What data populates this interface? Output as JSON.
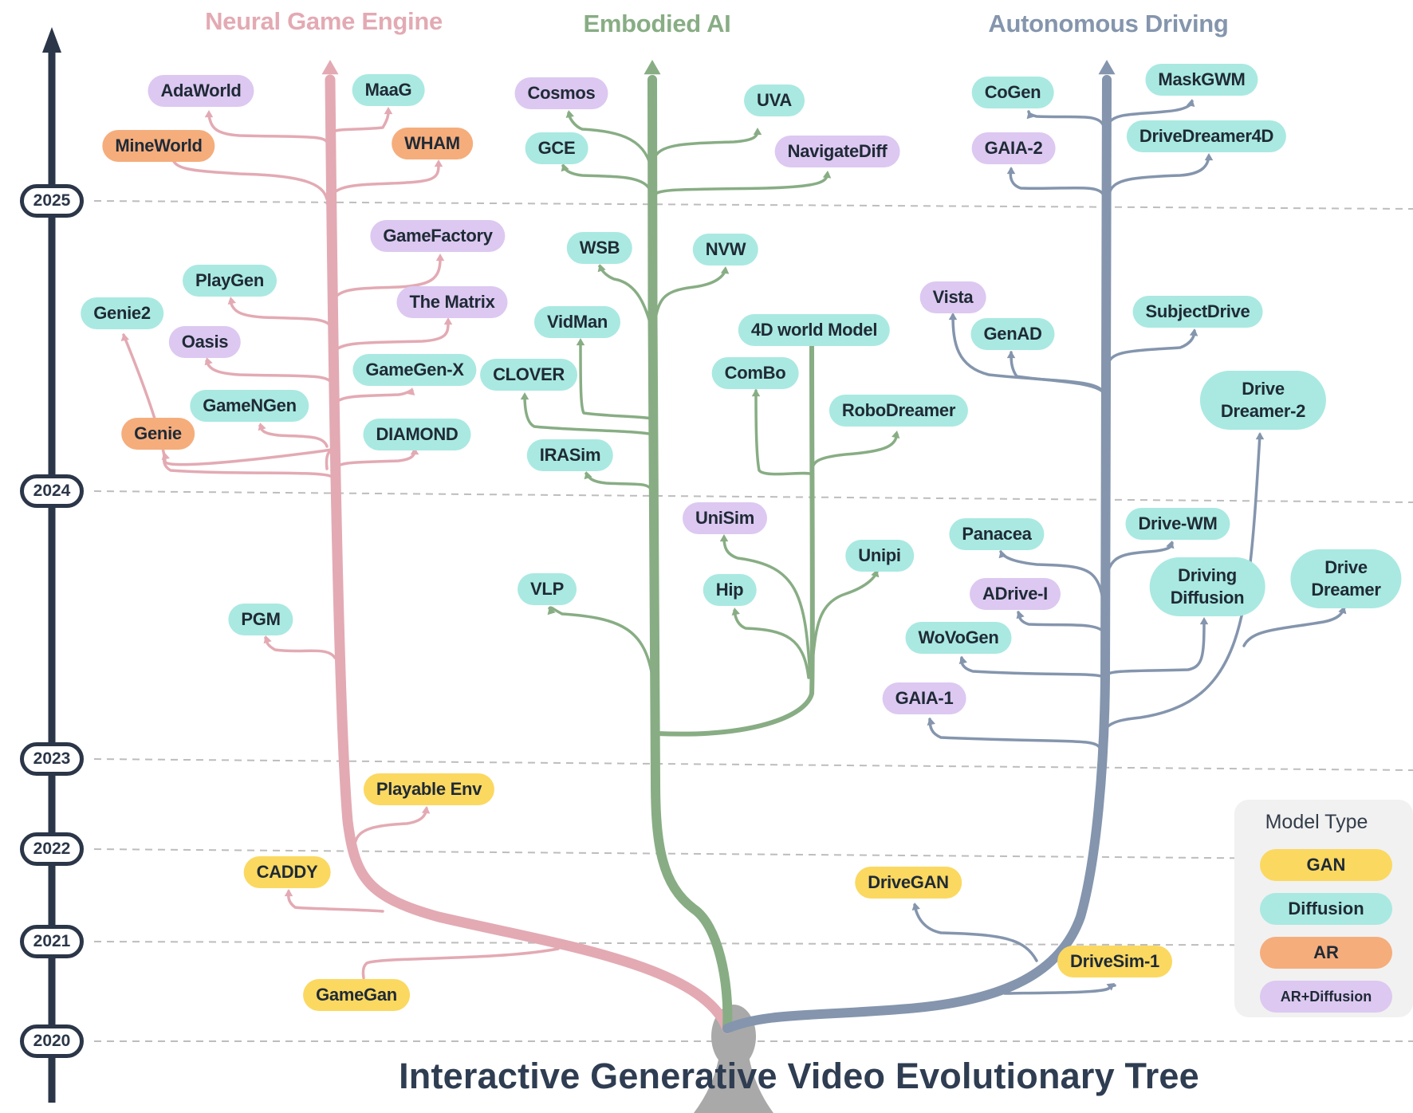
{
  "title": "Interactive Generative Video Evolutionary Tree",
  "branches": {
    "neural_game_engine": "Neural Game Engine",
    "embodied_ai": "Embodied AI",
    "autonomous_driving": "Autonomous Driving"
  },
  "years": [
    "2025",
    "2024",
    "2023",
    "2022",
    "2021",
    "2020"
  ],
  "colors": {
    "neural_game_engine": "#e3aab3",
    "embodied_ai": "#88ad84",
    "autonomous_driving": "#8495ad",
    "trunk": "#a9a9a9",
    "gan": "#fbd860",
    "diffusion": "#a9e9e1",
    "ar": "#f5ad7c",
    "ar_diffusion": "#dcc8f1",
    "timeline": "#2b3648"
  },
  "legend": {
    "title": "Model Type",
    "items": [
      "GAN",
      "Diffusion",
      "AR",
      "AR+Diffusion"
    ]
  },
  "nodes": {
    "neural_game_engine": [
      {
        "label": "AdaWorld",
        "type": "ar_diffusion"
      },
      {
        "label": "MaaG",
        "type": "diffusion"
      },
      {
        "label": "MineWorld",
        "type": "ar"
      },
      {
        "label": "WHAM",
        "type": "ar"
      },
      {
        "label": "GameFactory",
        "type": "ar_diffusion"
      },
      {
        "label": "PlayGen",
        "type": "diffusion"
      },
      {
        "label": "The Matrix",
        "type": "ar_diffusion"
      },
      {
        "label": "Genie2",
        "type": "diffusion"
      },
      {
        "label": "Oasis",
        "type": "ar_diffusion"
      },
      {
        "label": "GameGen-X",
        "type": "diffusion"
      },
      {
        "label": "GameNGen",
        "type": "diffusion"
      },
      {
        "label": "Genie",
        "type": "ar"
      },
      {
        "label": "DIAMOND",
        "type": "diffusion"
      },
      {
        "label": "PGM",
        "type": "diffusion"
      },
      {
        "label": "Playable Env",
        "type": "gan"
      },
      {
        "label": "CADDY",
        "type": "gan"
      },
      {
        "label": "GameGan",
        "type": "gan"
      }
    ],
    "embodied_ai": [
      {
        "label": "Cosmos",
        "type": "ar_diffusion"
      },
      {
        "label": "UVA",
        "type": "diffusion"
      },
      {
        "label": "GCE",
        "type": "diffusion"
      },
      {
        "label": "NavigateDiff",
        "type": "ar_diffusion"
      },
      {
        "label": "WSB",
        "type": "diffusion"
      },
      {
        "label": "NVW",
        "type": "diffusion"
      },
      {
        "label": "VidMan",
        "type": "diffusion"
      },
      {
        "label": "4D world Model",
        "type": "diffusion"
      },
      {
        "label": "CLOVER",
        "type": "diffusion"
      },
      {
        "label": "ComBo",
        "type": "diffusion"
      },
      {
        "label": "RoboDreamer",
        "type": "diffusion"
      },
      {
        "label": "IRASim",
        "type": "diffusion"
      },
      {
        "label": "UniSim",
        "type": "ar_diffusion"
      },
      {
        "label": "Unipi",
        "type": "diffusion"
      },
      {
        "label": "VLP",
        "type": "diffusion"
      },
      {
        "label": "Hip",
        "type": "diffusion"
      }
    ],
    "autonomous_driving": [
      {
        "label": "CoGen",
        "type": "diffusion"
      },
      {
        "label": "MaskGWM",
        "type": "diffusion"
      },
      {
        "label": "GAIA-2",
        "type": "ar_diffusion"
      },
      {
        "label": "DriveDreamer4D",
        "type": "diffusion"
      },
      {
        "label": "Vista",
        "type": "ar_diffusion"
      },
      {
        "label": "GenAD",
        "type": "diffusion"
      },
      {
        "label": "SubjectDrive",
        "type": "diffusion"
      },
      {
        "label": "Drive\nDreamer-2",
        "type": "diffusion"
      },
      {
        "label": "Panacea",
        "type": "diffusion"
      },
      {
        "label": "Drive-WM",
        "type": "diffusion"
      },
      {
        "label": "Driving\nDiffusion",
        "type": "diffusion"
      },
      {
        "label": "Drive\nDreamer",
        "type": "diffusion"
      },
      {
        "label": "ADrive-I",
        "type": "ar_diffusion"
      },
      {
        "label": "WoVoGen",
        "type": "diffusion"
      },
      {
        "label": "GAIA-1",
        "type": "ar_diffusion"
      },
      {
        "label": "DriveGAN",
        "type": "gan"
      },
      {
        "label": "DriveSim-1",
        "type": "gan"
      }
    ]
  }
}
